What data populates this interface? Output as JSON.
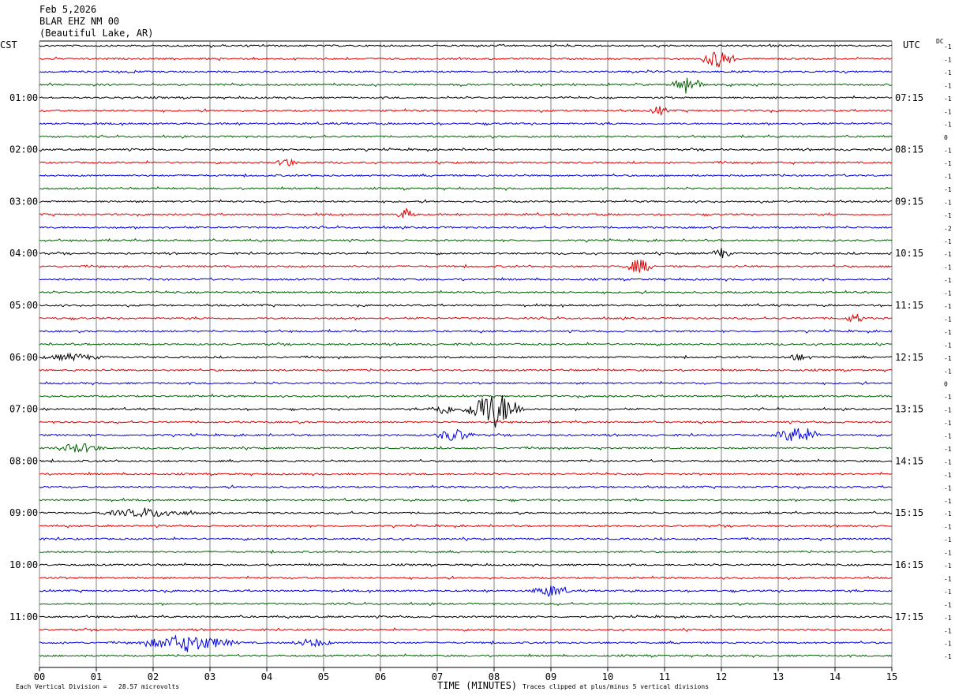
{
  "header": {
    "date": "Feb 5,2026",
    "station": "BLAR EHZ NM 00",
    "location": "(Beautiful Lake, AR)"
  },
  "left_zone": "CST",
  "right_zone": "UTC",
  "dc_label": "DC",
  "footer": {
    "scale_note": "Each Vertical Division =   28.57 microvolts",
    "xlabel": "TIME (MINUTES)",
    "clip_note": "Traces clipped at plus/minus 5 vertical divisions"
  },
  "colors": {
    "trace_cycle": [
      "#000000",
      "#e00000",
      "#0000e0",
      "#006400"
    ],
    "grid": "#808080"
  },
  "chart_data": {
    "type": "line",
    "title": "",
    "xlabel": "TIME (MINUTES)",
    "xlim": [
      0,
      15
    ],
    "x_ticks": [
      "00",
      "01",
      "02",
      "03",
      "04",
      "05",
      "06",
      "07",
      "08",
      "09",
      "10",
      "11",
      "12",
      "13",
      "14",
      "15"
    ],
    "left_hour_labels": [
      "01:00",
      "02:00",
      "03:00",
      "04:00",
      "05:00",
      "06:00",
      "07:00",
      "08:00",
      "09:00",
      "10:00",
      "11:00"
    ],
    "right_hour_labels": [
      "07:15",
      "08:15",
      "09:15",
      "10:15",
      "11:15",
      "12:15",
      "13:15",
      "14:15",
      "15:15",
      "16:15",
      "17:15"
    ],
    "trace_count": 48,
    "dc_offsets": [
      -1,
      -1,
      -1,
      -1,
      -1,
      -1,
      -1,
      0,
      -1,
      -1,
      -1,
      -1,
      -1,
      -1,
      -2,
      -1,
      -1,
      -1,
      -1,
      -1,
      -1,
      -1,
      -1,
      -1,
      -1,
      -1,
      0,
      -1,
      -1,
      -1,
      -1,
      -1,
      -1,
      -1,
      -1,
      -1,
      -1,
      -1,
      -1,
      -1,
      -1,
      -1,
      -1,
      -1,
      -1,
      -1,
      -1,
      -1
    ],
    "events": [
      {
        "trace": 1,
        "minute": 11.95,
        "amp": 12,
        "dur": 0.35
      },
      {
        "trace": 3,
        "minute": 11.4,
        "amp": 14,
        "dur": 0.3
      },
      {
        "trace": 5,
        "minute": 10.9,
        "amp": 6,
        "dur": 0.2
      },
      {
        "trace": 9,
        "minute": 4.35,
        "amp": 6,
        "dur": 0.2
      },
      {
        "trace": 13,
        "minute": 6.45,
        "amp": 7,
        "dur": 0.2
      },
      {
        "trace": 16,
        "minute": 12.0,
        "amp": 7,
        "dur": 0.2
      },
      {
        "trace": 17,
        "minute": 10.55,
        "amp": 9,
        "dur": 0.3
      },
      {
        "trace": 21,
        "minute": 14.35,
        "amp": 6,
        "dur": 0.2
      },
      {
        "trace": 24,
        "minute": 0.6,
        "amp": 4,
        "dur": 0.6
      },
      {
        "trace": 24,
        "minute": 13.35,
        "amp": 4,
        "dur": 0.3
      },
      {
        "trace": 28,
        "minute": 7.1,
        "amp": 7,
        "dur": 0.3
      },
      {
        "trace": 28,
        "minute": 8.0,
        "amp": 24,
        "dur": 0.6
      },
      {
        "trace": 30,
        "minute": 7.3,
        "amp": 8,
        "dur": 0.4
      },
      {
        "trace": 30,
        "minute": 13.35,
        "amp": 10,
        "dur": 0.5
      },
      {
        "trace": 31,
        "minute": 0.7,
        "amp": 6,
        "dur": 0.5
      },
      {
        "trace": 36,
        "minute": 1.9,
        "amp": 5,
        "dur": 1.0
      },
      {
        "trace": 42,
        "minute": 9.0,
        "amp": 7,
        "dur": 0.4
      },
      {
        "trace": 46,
        "minute": 2.6,
        "amp": 10,
        "dur": 1.0
      },
      {
        "trace": 46,
        "minute": 4.8,
        "amp": 5,
        "dur": 0.4
      }
    ]
  }
}
